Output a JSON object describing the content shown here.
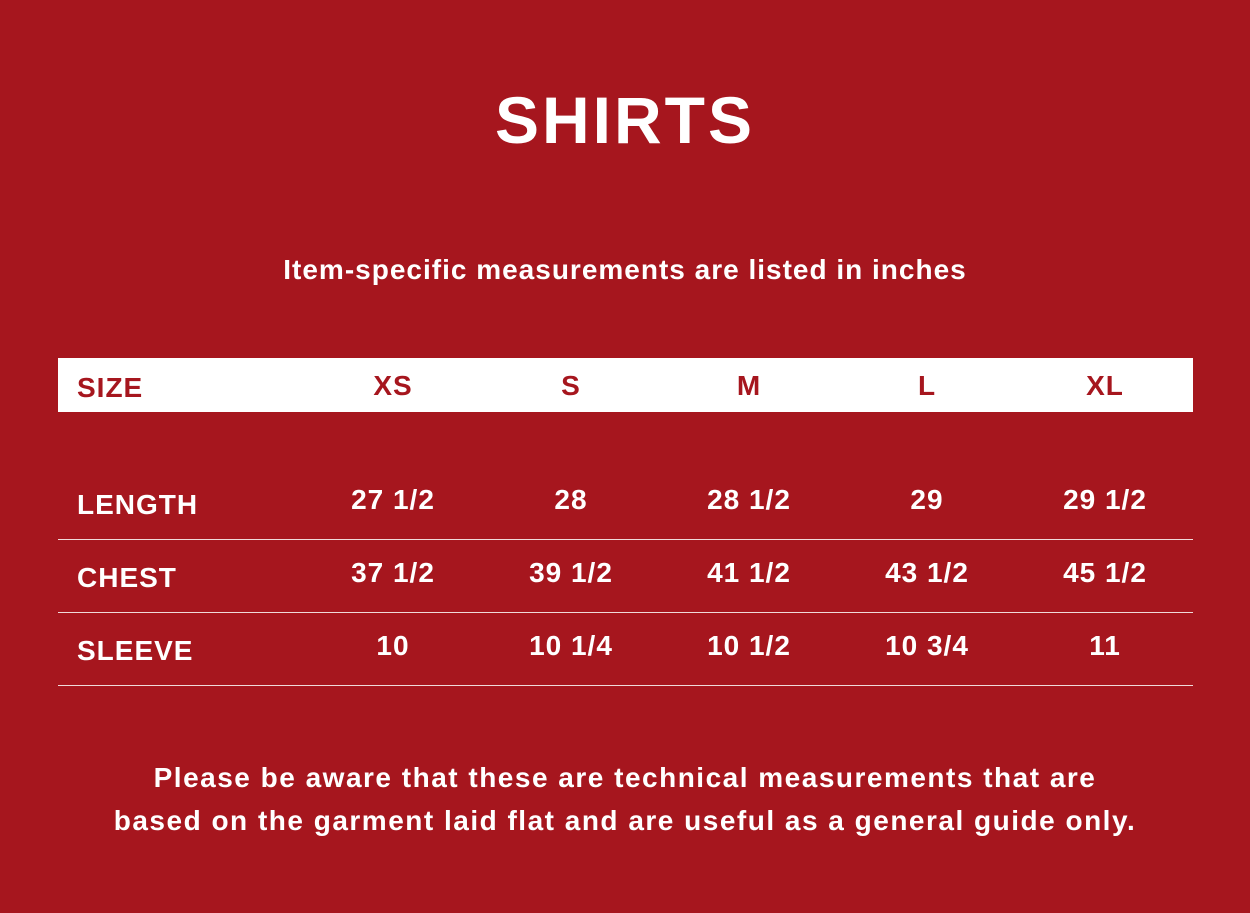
{
  "title": "SHIRTS",
  "subtitle": "Item-specific measurements are listed in inches",
  "colors": {
    "background": "#a6161e",
    "header_bg": "#ffffff",
    "text": "#ffffff"
  },
  "table": {
    "header": {
      "label": "SIZE",
      "sizes": [
        "XS",
        "S",
        "M",
        "L",
        "XL"
      ]
    },
    "rows": [
      {
        "label": "LENGTH",
        "values": [
          "27 1/2",
          "28",
          "28 1/2",
          "29",
          "29 1/2"
        ]
      },
      {
        "label": "CHEST",
        "values": [
          "37 1/2",
          "39 1/2",
          "41 1/2",
          "43 1/2",
          "45 1/2"
        ]
      },
      {
        "label": "SLEEVE",
        "values": [
          "10",
          "10 1/4",
          "10 1/2",
          "10 3/4",
          "11"
        ]
      }
    ]
  },
  "footer": {
    "line1": "Please be aware that these are technical measurements that are",
    "line2": "based on the garment laid flat and are useful as a general guide only."
  }
}
